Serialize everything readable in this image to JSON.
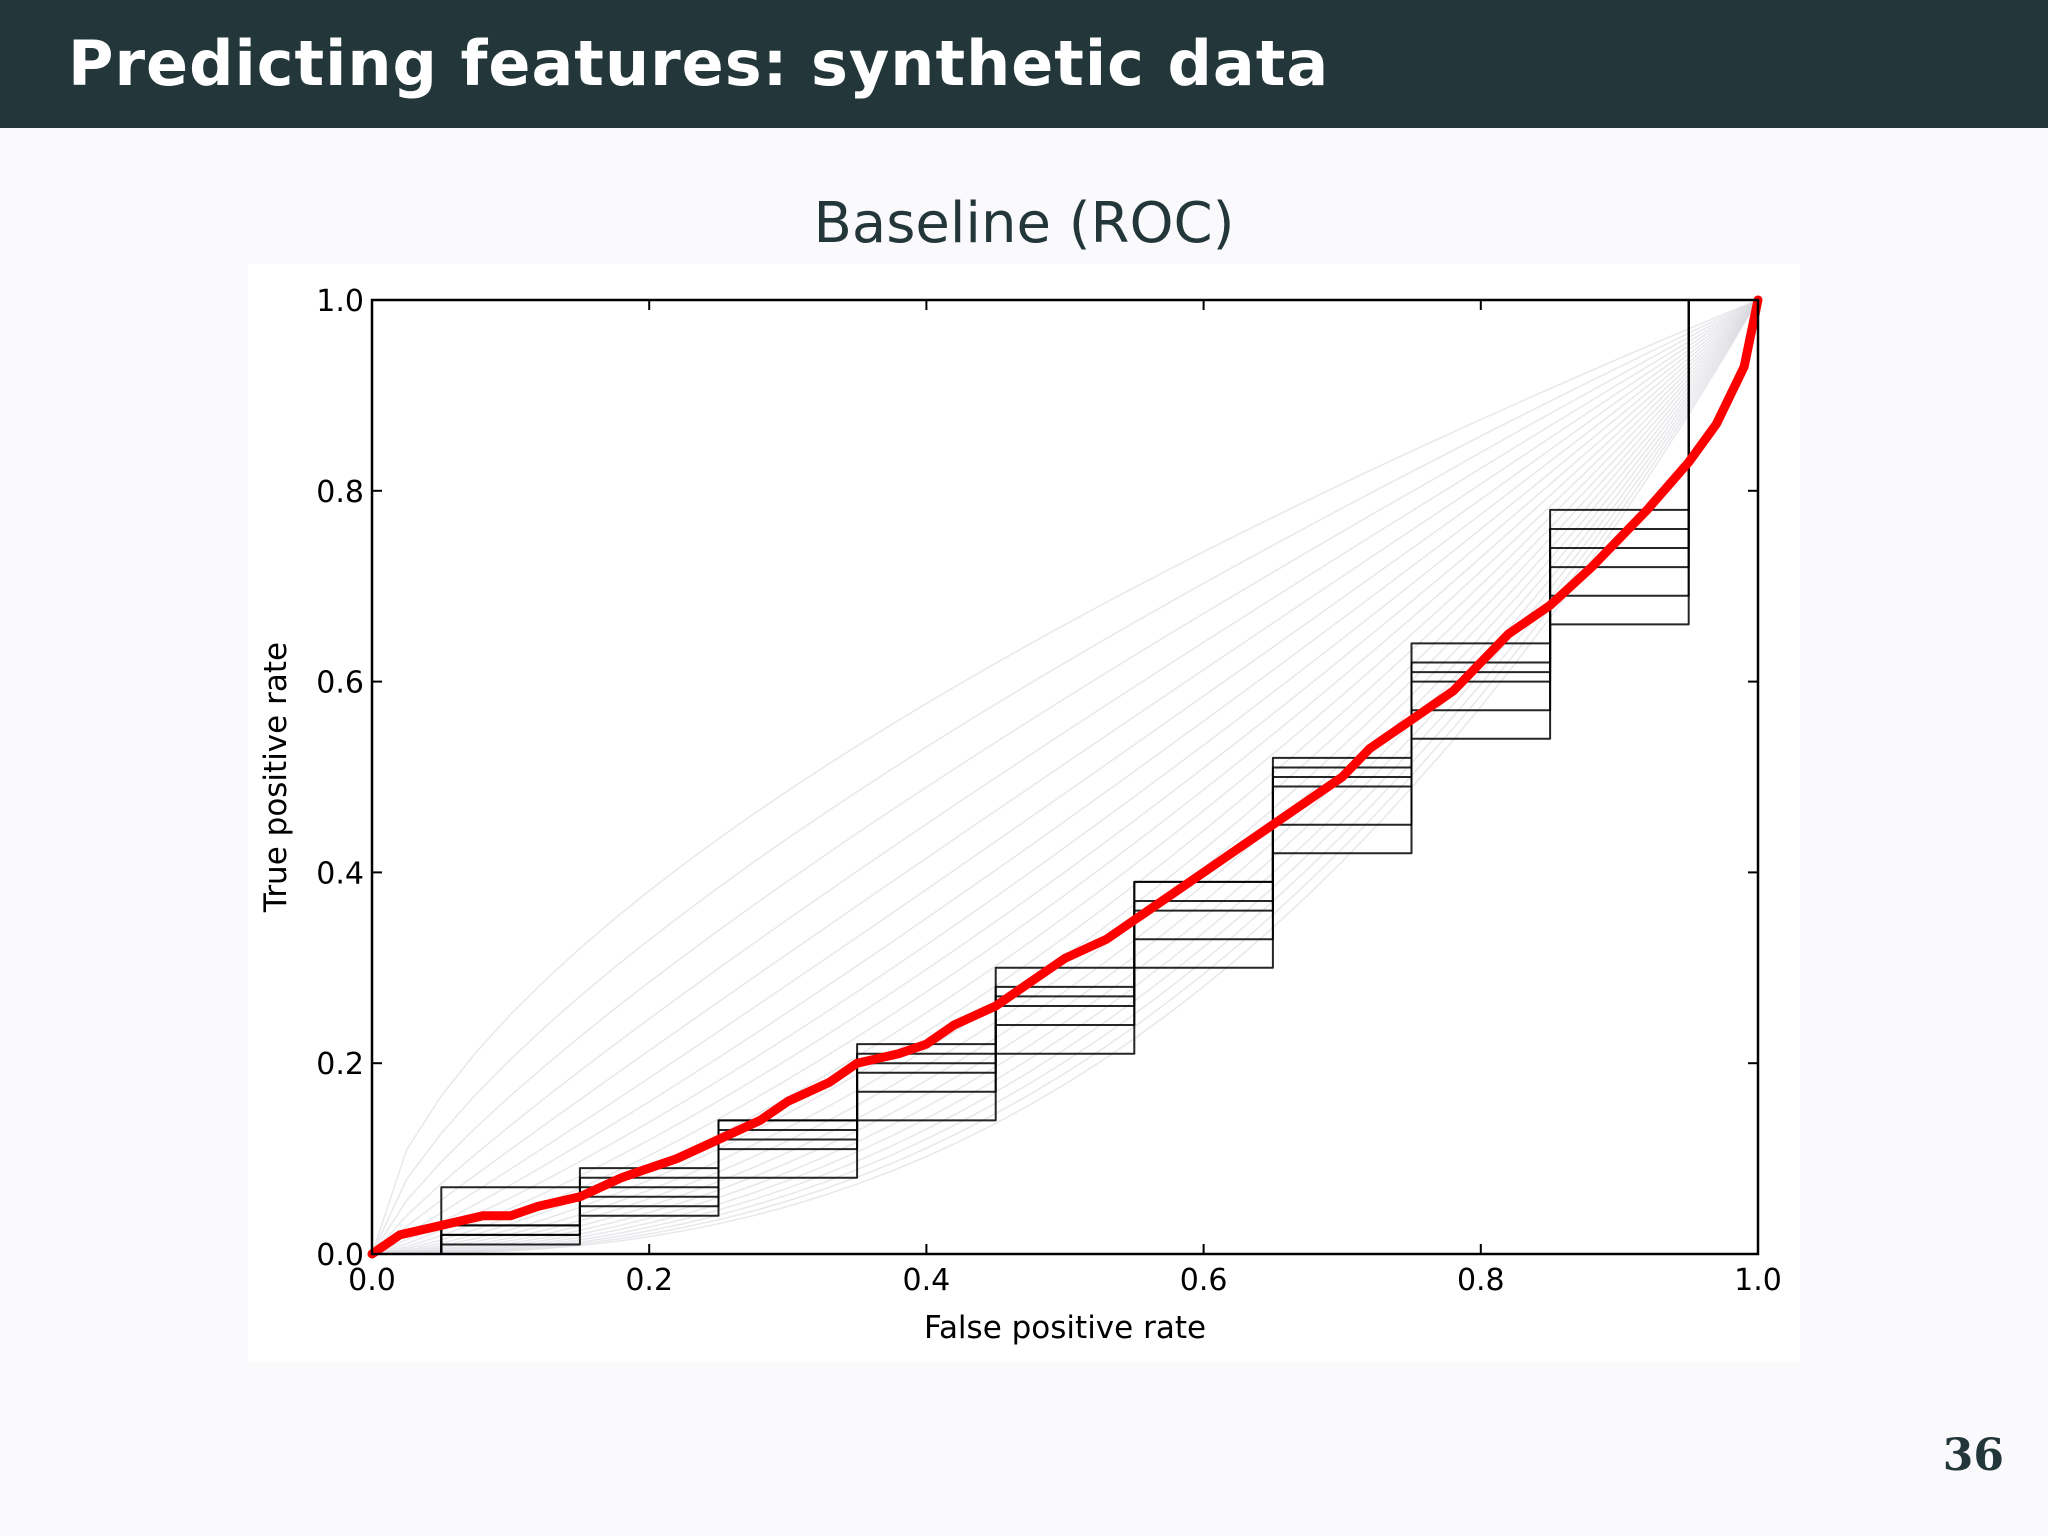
{
  "slide": {
    "title": "Predicting features: synthetic data",
    "subtitle": "Baseline (ROC)",
    "page_number": "36"
  },
  "colors": {
    "title_bar": "#23373b",
    "mean_curve": "#ff0000",
    "individual_curves": "#000000",
    "faint_curves": "#d8d8e0"
  },
  "chart_data": {
    "type": "line",
    "xlabel": "False positive rate",
    "ylabel": "True positive rate",
    "xlim": [
      0.0,
      1.0
    ],
    "ylim": [
      0.0,
      1.0
    ],
    "x_ticks": [
      "0.0",
      "0.2",
      "0.4",
      "0.6",
      "0.8",
      "1.0"
    ],
    "y_ticks": [
      "0.0",
      "0.2",
      "0.4",
      "0.6",
      "0.8",
      "1.0"
    ],
    "grid": false,
    "legend": "none",
    "series": [
      {
        "color": "#ff0000",
        "x": [
          0.0,
          0.02,
          0.05,
          0.08,
          0.1,
          0.12,
          0.15,
          0.18,
          0.2,
          0.22,
          0.25,
          0.28,
          0.3,
          0.33,
          0.35,
          0.38,
          0.4,
          0.42,
          0.45,
          0.48,
          0.5,
          0.53,
          0.55,
          0.58,
          0.6,
          0.62,
          0.65,
          0.68,
          0.7,
          0.72,
          0.75,
          0.78,
          0.8,
          0.82,
          0.85,
          0.88,
          0.9,
          0.92,
          0.95,
          0.97,
          0.99,
          1.0
        ],
        "y": [
          0.0,
          0.02,
          0.03,
          0.04,
          0.04,
          0.05,
          0.06,
          0.08,
          0.09,
          0.1,
          0.12,
          0.14,
          0.16,
          0.18,
          0.2,
          0.21,
          0.22,
          0.24,
          0.26,
          0.29,
          0.31,
          0.33,
          0.35,
          0.38,
          0.4,
          0.42,
          0.45,
          0.48,
          0.5,
          0.53,
          0.56,
          0.59,
          0.62,
          0.65,
          0.68,
          0.72,
          0.75,
          0.78,
          0.83,
          0.87,
          0.93,
          1.0
        ]
      },
      {
        "color": "#000000",
        "x": [
          0.0,
          0.1,
          0.2,
          0.3,
          0.4,
          0.5,
          0.6,
          0.7,
          0.8,
          0.9,
          1.0
        ],
        "y": [
          0.0,
          0.07,
          0.09,
          0.14,
          0.2,
          0.26,
          0.36,
          0.49,
          0.6,
          0.72,
          1.0
        ]
      },
      {
        "color": "#000000",
        "x": [
          0.0,
          0.1,
          0.2,
          0.3,
          0.4,
          0.5,
          0.6,
          0.7,
          0.8,
          0.9,
          1.0
        ],
        "y": [
          0.0,
          0.02,
          0.05,
          0.11,
          0.17,
          0.24,
          0.33,
          0.45,
          0.57,
          0.69,
          1.0
        ]
      },
      {
        "color": "#000000",
        "x": [
          0.0,
          0.1,
          0.2,
          0.3,
          0.4,
          0.5,
          0.6,
          0.7,
          0.8,
          0.9,
          1.0
        ],
        "y": [
          0.0,
          0.03,
          0.07,
          0.12,
          0.19,
          0.27,
          0.37,
          0.5,
          0.62,
          0.76,
          1.0
        ]
      },
      {
        "color": "#000000",
        "x": [
          0.0,
          0.1,
          0.2,
          0.3,
          0.4,
          0.5,
          0.6,
          0.7,
          0.8,
          0.9,
          1.0
        ],
        "y": [
          0.0,
          0.01,
          0.04,
          0.08,
          0.14,
          0.21,
          0.3,
          0.42,
          0.54,
          0.66,
          1.0
        ]
      },
      {
        "color": "#000000",
        "x": [
          0.0,
          0.1,
          0.2,
          0.3,
          0.4,
          0.5,
          0.6,
          0.7,
          0.8,
          0.9,
          1.0
        ],
        "y": [
          0.0,
          0.02,
          0.06,
          0.13,
          0.21,
          0.28,
          0.39,
          0.52,
          0.64,
          0.78,
          1.0
        ]
      },
      {
        "color": "#000000",
        "x": [
          0.0,
          0.1,
          0.2,
          0.3,
          0.4,
          0.5,
          0.6,
          0.7,
          0.8,
          0.9,
          1.0
        ],
        "y": [
          0.0,
          0.03,
          0.08,
          0.14,
          0.22,
          0.3,
          0.39,
          0.51,
          0.61,
          0.74,
          1.0
        ]
      }
    ]
  }
}
